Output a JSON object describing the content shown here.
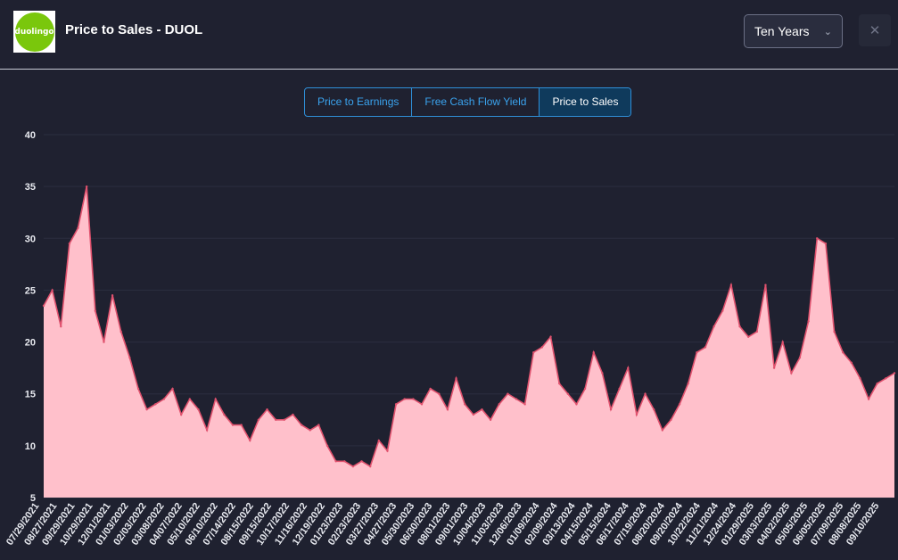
{
  "header": {
    "logo_text": "duolingo",
    "title": "Price to Sales - DUOL",
    "range_select": "Ten Years",
    "close_icon": "close-icon"
  },
  "tabs": [
    {
      "label": "Price to Earnings",
      "active": false
    },
    {
      "label": "Free Cash Flow Yield",
      "active": false
    },
    {
      "label": "Price to Sales",
      "active": true
    }
  ],
  "colors": {
    "area_fill": "#ffc0cb",
    "area_line": "#e0526e",
    "accent": "#2f8fd8"
  },
  "chart_data": {
    "type": "area",
    "ylim": [
      5,
      40
    ],
    "y_ticks": [
      40,
      35,
      30,
      25,
      20,
      15,
      10,
      5
    ],
    "x_tick_labels": [
      "07/29/2021",
      "08/27/2021",
      "09/29/2021",
      "10/29/2021",
      "12/01/2021",
      "01/03/2022",
      "02/03/2022",
      "03/08/2022",
      "04/07/2022",
      "05/10/2022",
      "06/10/2022",
      "07/14/2022",
      "08/15/2022",
      "09/15/2022",
      "10/17/2022",
      "11/16/2022",
      "12/19/2022",
      "01/23/2023",
      "02/23/2023",
      "03/27/2023",
      "04/27/2023",
      "05/30/2023",
      "06/30/2023",
      "08/01/2023",
      "09/01/2023",
      "10/04/2023",
      "11/03/2023",
      "12/06/2023",
      "01/09/2024",
      "02/09/2024",
      "03/13/2024",
      "04/15/2024",
      "05/15/2024",
      "06/17/2024",
      "07/19/2024",
      "08/20/2024",
      "09/20/2024",
      "10/22/2024",
      "11/21/2024",
      "12/24/2024",
      "01/29/2025",
      "03/03/2025",
      "04/02/2025",
      "05/05/2025",
      "06/05/2025",
      "07/09/2025",
      "08/08/2025",
      "09/10/2025"
    ],
    "x": [
      "07/29/2021",
      "08/10/2021",
      "08/20/2021",
      "09/01/2021",
      "09/10/2021",
      "09/20/2021",
      "09/29/2021",
      "10/10/2021",
      "10/20/2021",
      "10/29/2021",
      "11/10/2021",
      "11/20/2021",
      "12/01/2021",
      "12/15/2021",
      "01/03/2022",
      "01/20/2022",
      "02/03/2022",
      "02/20/2022",
      "03/08/2022",
      "03/20/2022",
      "04/07/2022",
      "04/20/2022",
      "05/10/2022",
      "05/20/2022",
      "06/10/2022",
      "06/25/2022",
      "07/14/2022",
      "07/30/2022",
      "08/15/2022",
      "08/30/2022",
      "09/15/2022",
      "09/30/2022",
      "10/17/2022",
      "11/01/2022",
      "11/16/2022",
      "12/01/2022",
      "12/19/2022",
      "01/05/2023",
      "01/23/2023",
      "02/05/2023",
      "02/23/2023",
      "03/10/2023",
      "03/27/2023",
      "04/10/2023",
      "04/27/2023",
      "05/10/2023",
      "05/30/2023",
      "06/15/2023",
      "06/30/2023",
      "07/15/2023",
      "08/01/2023",
      "08/15/2023",
      "09/01/2023",
      "09/15/2023",
      "10/04/2023",
      "10/20/2023",
      "11/03/2023",
      "11/20/2023",
      "12/06/2023",
      "12/20/2023",
      "01/09/2024",
      "01/25/2024",
      "02/09/2024",
      "02/25/2024",
      "03/13/2024",
      "03/28/2024",
      "04/15/2024",
      "04/30/2024",
      "05/15/2024",
      "05/30/2024",
      "06/17/2024",
      "07/01/2024",
      "07/19/2024",
      "08/05/2024",
      "08/20/2024",
      "09/05/2024",
      "09/20/2024",
      "10/05/2024",
      "10/22/2024",
      "11/05/2024",
      "11/21/2024",
      "12/05/2024",
      "12/24/2024",
      "01/10/2025",
      "01/29/2025",
      "02/15/2025",
      "03/03/2025",
      "03/15/2025",
      "04/02/2025",
      "04/18/2025",
      "05/05/2025",
      "05/20/2025",
      "06/05/2025",
      "06/20/2025",
      "07/09/2025",
      "07/25/2025",
      "08/08/2025",
      "08/25/2025",
      "09/10/2025",
      "09/25/2025"
    ],
    "values": [
      23.5,
      25.0,
      21.5,
      29.5,
      31.0,
      35.0,
      23.0,
      20.0,
      24.5,
      21.0,
      18.5,
      15.5,
      13.5,
      14.0,
      14.5,
      15.5,
      13.0,
      14.5,
      13.5,
      11.5,
      14.5,
      13.0,
      12.0,
      12.0,
      10.5,
      12.5,
      13.5,
      12.5,
      12.5,
      13.0,
      12.0,
      11.5,
      12.0,
      10.0,
      8.5,
      8.5,
      8.0,
      8.5,
      8.0,
      10.5,
      9.5,
      14.0,
      14.5,
      14.5,
      14.0,
      15.5,
      15.0,
      13.5,
      16.5,
      14.0,
      13.0,
      13.5,
      12.5,
      14.0,
      15.0,
      14.5,
      14.0,
      19.0,
      19.5,
      20.5,
      16.0,
      15.0,
      14.0,
      15.5,
      19.0,
      17.0,
      13.5,
      15.5,
      17.5,
      13.0,
      15.0,
      13.5,
      11.5,
      12.5,
      14.0,
      16.0,
      19.0,
      19.5,
      21.5,
      23.0,
      25.5,
      21.5,
      20.5,
      21.0,
      25.5,
      17.5,
      20.0,
      17.0,
      18.5,
      22.0,
      30.0,
      29.5,
      21.0,
      19.0,
      18.0,
      16.5,
      14.5,
      16.0,
      16.5,
      17.0
    ]
  }
}
